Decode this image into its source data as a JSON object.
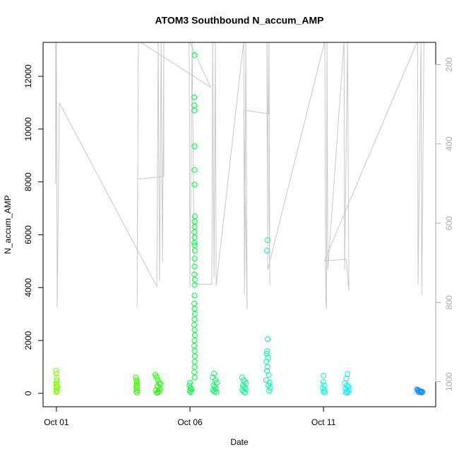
{
  "chart_data": {
    "type": "scatter",
    "title": "ATOM3 Southbound N_accum_AMP",
    "xlabel": "Date",
    "ylabel": "N_accum_AMP",
    "xlim": [
      0.5,
      15.2
    ],
    "ylim": [
      -508,
      13282
    ],
    "y2lim": [
      144,
      1063
    ],
    "y2_inverted": true,
    "xticks": [
      {
        "value": 1,
        "label": "Oct 01"
      },
      {
        "value": 6,
        "label": "Oct 06"
      },
      {
        "value": 11,
        "label": "Oct 11"
      }
    ],
    "yticks": [
      0,
      2000,
      4000,
      6000,
      8000,
      10000,
      12000
    ],
    "y2ticks": [
      200,
      400,
      600,
      800,
      1000
    ],
    "series": [
      {
        "axis": "y2",
        "color": "#c8c8c8",
        "x": [
          0.97,
          0.97,
          1.0,
          1.03,
          1.11,
          4.76,
          4.81,
          4.86,
          4.92,
          4.97,
          5.02,
          5.02,
          4.04,
          4.02,
          4.07,
          6.77,
          5.97,
          6.0,
          6.08,
          6.16,
          6.82,
          6.85,
          6.9,
          6.95,
          6.98,
          8.01,
          8.04,
          8.09,
          8.14,
          8.01,
          8.94,
          8.96,
          8.99,
          8.88,
          8.91,
          11.05,
          11.08,
          11.11,
          11.13,
          11.16,
          11.77,
          11.79,
          11.9,
          11.95,
          11.85,
          11.03,
          14.52,
          14.54,
          14.65,
          14.68,
          14.76
        ],
        "values": [
          140,
          500,
          140,
          813,
          297,
          760,
          140,
          745,
          140,
          700,
          140,
          482,
          489,
          813,
          140,
          257,
          140,
          763,
          140,
          754,
          754,
          140,
          736,
          140,
          758,
          140,
          781,
          140,
          817,
          315,
          324,
          140,
          758,
          140,
          718,
          140,
          781,
          817,
          140,
          718,
          140,
          718,
          140,
          772,
          691,
          695,
          140,
          754,
          140,
          781,
          140
        ]
      },
      {
        "color": "#80ff00",
        "x": [
          0.98,
          1.0,
          1.01,
          1.02,
          1.0,
          0.99,
          1.01,
          1.03,
          1.0,
          1.02,
          1.01,
          0.99
        ],
        "values": [
          860,
          750,
          600,
          500,
          420,
          350,
          300,
          250,
          180,
          120,
          80,
          50
        ]
      },
      {
        "color": "#40ff00",
        "x": [
          3.97,
          3.99,
          4.0,
          4.01,
          4.02,
          3.98,
          4.0,
          4.01,
          3.99,
          4.02
        ],
        "values": [
          600,
          520,
          450,
          380,
          300,
          250,
          180,
          120,
          70,
          30
        ]
      },
      {
        "color": "#20ff00",
        "x": [
          4.7,
          4.75,
          4.8,
          4.85,
          4.9,
          4.78,
          4.82,
          4.88,
          4.72,
          4.86,
          4.8,
          4.76
        ],
        "values": [
          700,
          620,
          500,
          400,
          350,
          280,
          220,
          160,
          120,
          80,
          40,
          20
        ]
      },
      {
        "color": "#00ff40",
        "x": [
          6.17,
          6.16,
          6.16,
          6.16,
          6.17,
          6.17,
          6.17,
          6.18,
          6.17,
          6.17,
          6.16,
          6.17,
          6.16,
          6.17,
          6.18,
          6.17,
          6.17,
          6.16,
          6.18,
          6.17,
          6.17,
          6.16,
          6.17,
          6.18,
          6.17,
          6.16,
          6.17,
          6.18,
          6.17,
          6.16,
          6.17,
          6.18,
          6.17,
          6.17,
          6.16,
          6.17,
          6.0,
          5.98,
          6.02,
          6.05,
          5.99,
          6.03
        ],
        "values": [
          12800,
          11200,
          10900,
          10700,
          9350,
          8450,
          7900,
          6700,
          6500,
          6300,
          6100,
          5900,
          5700,
          5600,
          5400,
          5100,
          4800,
          4500,
          4300,
          4100,
          3700,
          3400,
          3200,
          3000,
          2800,
          2600,
          2400,
          2200,
          2000,
          1800,
          1600,
          1400,
          1200,
          1000,
          800,
          600,
          400,
          300,
          200,
          150,
          100,
          50
        ]
      },
      {
        "color": "#00ff60",
        "x": [
          6.9,
          6.85,
          6.95,
          7.0,
          6.88,
          6.93,
          6.97,
          6.86,
          6.91,
          6.99
        ],
        "values": [
          750,
          600,
          500,
          400,
          300,
          250,
          180,
          120,
          70,
          30
        ]
      },
      {
        "color": "#00ff90",
        "x": [
          7.95,
          8.0,
          8.05,
          8.1,
          7.98,
          8.03,
          8.08,
          7.96,
          8.01,
          8.06
        ],
        "values": [
          600,
          500,
          450,
          380,
          300,
          240,
          180,
          120,
          60,
          20
        ]
      },
      {
        "color": "#00ffa0",
        "x": [
          8.9,
          8.88,
          8.91,
          8.89,
          8.87,
          8.92,
          8.86,
          8.9,
          8.88,
          8.95,
          8.85,
          8.98,
          8.93,
          9.0,
          8.96
        ],
        "values": [
          5800,
          5400,
          2050,
          1600,
          1500,
          1350,
          1200,
          1000,
          850,
          700,
          500,
          400,
          300,
          200,
          100
        ]
      },
      {
        "color": "#00ffe0",
        "x": [
          11.0,
          10.99,
          11.02,
          10.97,
          11.04,
          11.0,
          11.05
        ],
        "values": [
          670,
          430,
          300,
          200,
          120,
          60,
          30
        ]
      },
      {
        "color": "#00f0ff",
        "x": [
          11.9,
          11.85,
          11.8,
          11.88,
          11.93,
          11.82,
          11.95,
          11.87,
          11.91,
          11.84
        ],
        "values": [
          730,
          550,
          380,
          300,
          250,
          180,
          120,
          80,
          40,
          20
        ]
      },
      {
        "color": "#1090ff",
        "x": [
          14.5,
          14.53,
          14.56,
          14.6,
          14.63,
          14.66,
          14.7,
          14.55,
          14.62,
          14.68
        ],
        "values": [
          150,
          120,
          100,
          90,
          80,
          70,
          60,
          50,
          40,
          30
        ]
      }
    ]
  }
}
